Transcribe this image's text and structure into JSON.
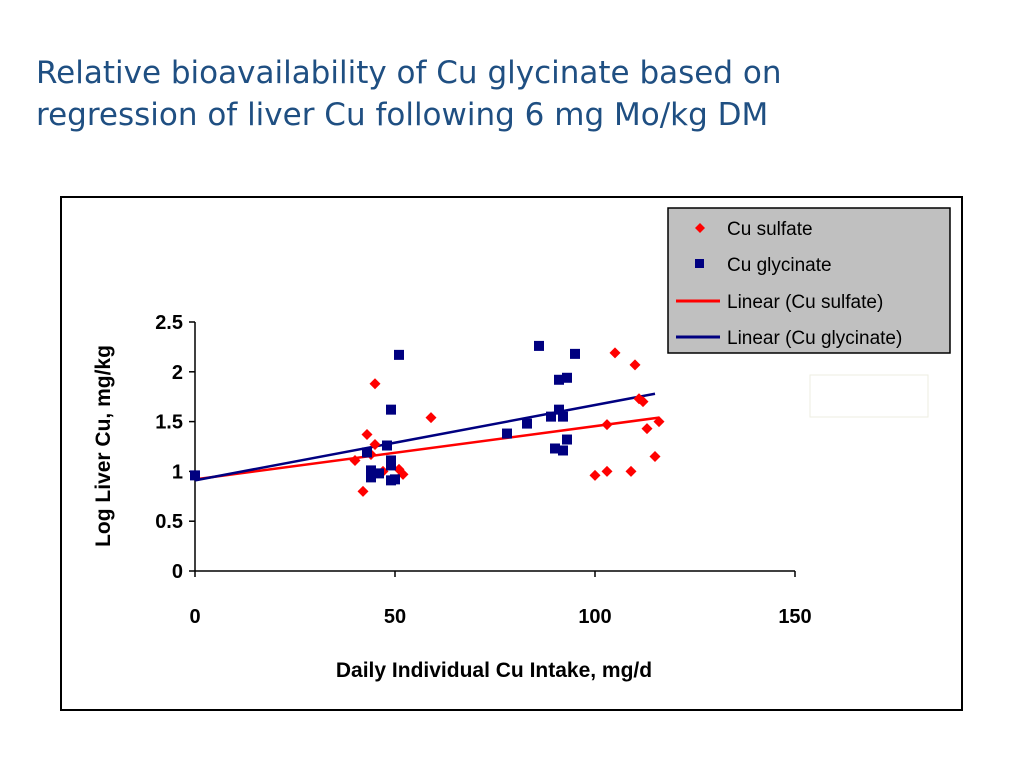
{
  "slide": {
    "title_line1": "Relative bioavailability of Cu glycinate based on",
    "title_line2": "regression of liver Cu following 6 mg Mo/kg DM"
  },
  "colors": {
    "title": "#1f4f82",
    "cu_sulfate": "#ff0000",
    "cu_glycinate": "#000080",
    "legend_bg": "#c0c0c0"
  },
  "chart_data": {
    "type": "scatter",
    "xlabel": "Daily Individual Cu Intake, mg/d",
    "ylabel": "Log Liver Cu, mg/kg",
    "xlim": [
      0,
      150
    ],
    "ylim": [
      0,
      2.5
    ],
    "xticks": [
      "0",
      "50",
      "100",
      "150"
    ],
    "yticks": [
      "0",
      "0.5",
      "1",
      "1.5",
      "2",
      "2.5"
    ],
    "grid": false,
    "legend_position": "top-right",
    "legend": [
      "Cu sulfate",
      "Cu glycinate",
      "Linear (Cu sulfate)",
      "Linear (Cu glycinate)"
    ],
    "series": [
      {
        "name": "Cu sulfate",
        "marker": "diamond",
        "color": "#ff0000",
        "points": [
          [
            42,
            0.8
          ],
          [
            43,
            1.37
          ],
          [
            44,
            1.17
          ],
          [
            45,
            1.88
          ],
          [
            45,
            1.27
          ],
          [
            40,
            1.11
          ],
          [
            47,
            1.0
          ],
          [
            51,
            1.02
          ],
          [
            52,
            0.97
          ],
          [
            59,
            1.54
          ],
          [
            100,
            0.96
          ],
          [
            103,
            1.0
          ],
          [
            103,
            1.47
          ],
          [
            105,
            2.19
          ],
          [
            109,
            1.0
          ],
          [
            110,
            2.07
          ],
          [
            111,
            1.73
          ],
          [
            112,
            1.7
          ],
          [
            113,
            1.43
          ],
          [
            115,
            1.15
          ],
          [
            116,
            1.5
          ]
        ]
      },
      {
        "name": "Cu glycinate",
        "marker": "square",
        "color": "#000080",
        "points": [
          [
            0,
            0.96
          ],
          [
            43,
            1.19
          ],
          [
            44,
            0.94
          ],
          [
            44,
            1.01
          ],
          [
            46,
            0.98
          ],
          [
            48,
            1.26
          ],
          [
            49,
            1.62
          ],
          [
            49,
            1.06
          ],
          [
            49,
            0.91
          ],
          [
            49,
            1.11
          ],
          [
            50,
            0.92
          ],
          [
            51,
            2.17
          ],
          [
            78,
            1.38
          ],
          [
            83,
            1.48
          ],
          [
            86,
            2.26
          ],
          [
            89,
            1.55
          ],
          [
            90,
            1.23
          ],
          [
            91,
            1.62
          ],
          [
            91,
            1.92
          ],
          [
            92,
            1.21
          ],
          [
            92,
            1.55
          ],
          [
            93,
            1.94
          ],
          [
            93,
            1.32
          ],
          [
            95,
            2.18
          ]
        ]
      }
    ],
    "trendlines": [
      {
        "name": "Linear (Cu sulfate)",
        "color": "#ff0000",
        "x": [
          0,
          116
        ],
        "y": [
          0.92,
          1.54
        ]
      },
      {
        "name": "Linear (Cu glycinate)",
        "color": "#000080",
        "x": [
          0,
          115
        ],
        "y": [
          0.91,
          1.78
        ]
      }
    ]
  }
}
